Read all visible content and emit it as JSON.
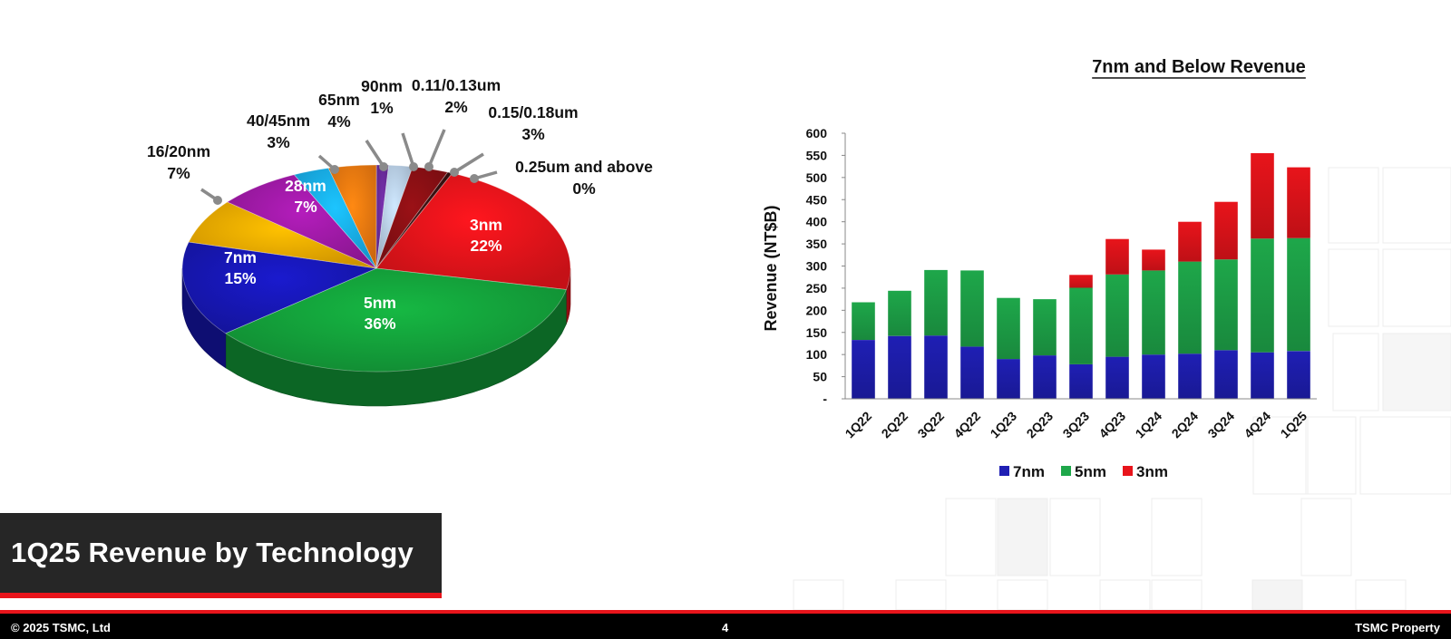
{
  "slide_title": "1Q25 Revenue by Technology",
  "footer": {
    "copyright": "© 2025 TSMC, Ltd",
    "page_number": "4",
    "property": "TSMC Property"
  },
  "chart_data": [
    {
      "type": "pie",
      "title": "",
      "slices": [
        {
          "label": "3nm",
          "value": 22,
          "pct": "22%",
          "color": "#e8141b"
        },
        {
          "label": "5nm",
          "value": 36,
          "pct": "36%",
          "color": "#14a43c"
        },
        {
          "label": "7nm",
          "value": 15,
          "pct": "15%",
          "color": "#1717b8"
        },
        {
          "label": "16/20nm",
          "value": 7,
          "pct": "7%",
          "color": "#f2ad00"
        },
        {
          "label": "28nm",
          "value": 7,
          "pct": "7%",
          "color": "#a11aa8"
        },
        {
          "label": "40/45nm",
          "value": 3,
          "pct": "3%",
          "color": "#19b0ee"
        },
        {
          "label": "65nm",
          "value": 4,
          "pct": "4%",
          "color": "#f07a10"
        },
        {
          "label": "90nm",
          "value": 1,
          "pct": "1%",
          "color": "#6b2c9c"
        },
        {
          "label": "0.11/0.13um",
          "value": 2,
          "pct": "2%",
          "color": "#b9cfe6"
        },
        {
          "label": "0.15/0.18um",
          "value": 3,
          "pct": "3%",
          "color": "#8a0f14"
        },
        {
          "label": "0.25um and above",
          "value": 0,
          "pct": "0%",
          "color": "#3a1010"
        }
      ]
    },
    {
      "type": "bar",
      "stacked": true,
      "title": "7nm and Below Revenue",
      "ylabel": "Revenue (NT$B)",
      "xlabel": "",
      "ylim": [
        0,
        600
      ],
      "yticks": [
        "-",
        "50",
        "100",
        "150",
        "200",
        "250",
        "300",
        "350",
        "400",
        "450",
        "500",
        "550",
        "600"
      ],
      "categories": [
        "1Q22",
        "2Q22",
        "3Q22",
        "4Q22",
        "1Q23",
        "2Q23",
        "3Q23",
        "4Q23",
        "1Q24",
        "2Q24",
        "3Q24",
        "4Q24",
        "1Q25"
      ],
      "series": [
        {
          "name": "7nm",
          "color": "#1f1fb4",
          "values": [
            133,
            142,
            143,
            118,
            90,
            98,
            78,
            95,
            100,
            102,
            110,
            105,
            108
          ]
        },
        {
          "name": "5nm",
          "color": "#1ea74a",
          "values": [
            85,
            102,
            148,
            172,
            138,
            127,
            173,
            186,
            190,
            208,
            205,
            257,
            255
          ]
        },
        {
          "name": "3nm",
          "color": "#e8141b",
          "values": [
            0,
            0,
            0,
            0,
            0,
            0,
            29,
            80,
            47,
            90,
            130,
            193,
            160
          ]
        }
      ],
      "legend_position": "bottom",
      "grid": false
    }
  ]
}
